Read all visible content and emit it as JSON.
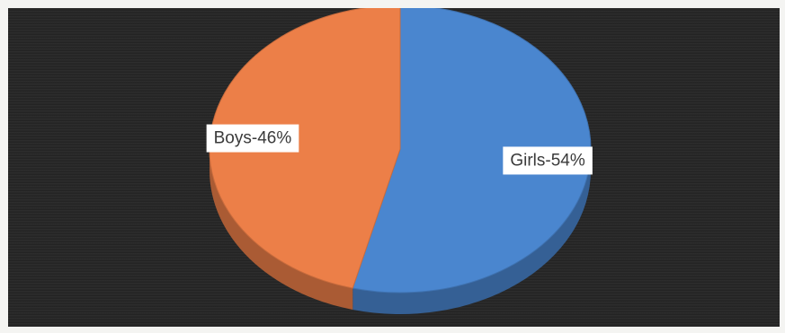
{
  "chart_data": {
    "type": "pie",
    "style": "3d",
    "background": "#252525",
    "slices": [
      {
        "label": "Girls-54%",
        "category": "Girls",
        "value": 54,
        "color": "#4a86cf"
      },
      {
        "label": "Boys-46%",
        "category": "Boys",
        "value": 46,
        "color": "#ec7f48"
      }
    ],
    "legend": "none",
    "title": ""
  }
}
